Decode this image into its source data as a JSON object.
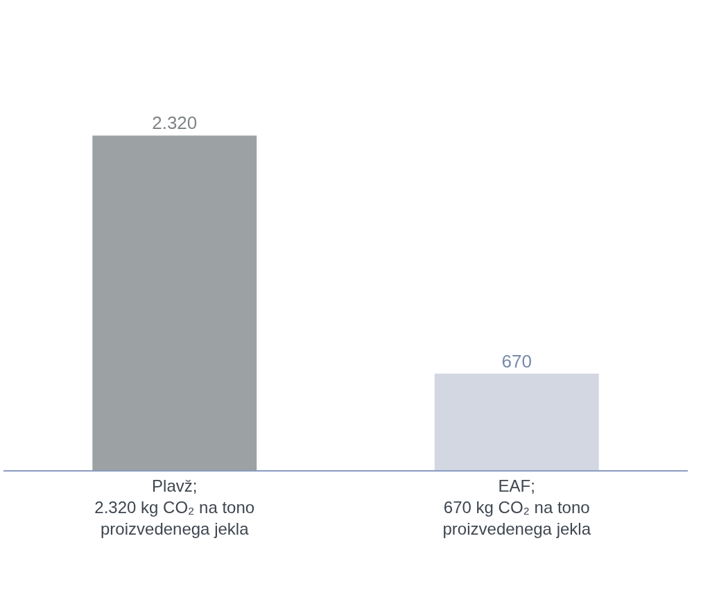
{
  "chart_data": {
    "type": "bar",
    "categories": [
      "Plavž;\n2.320 kg CO₂ na tono\nproizvedenega jekla",
      "EAF;\n670 kg CO₂ na tono\nproizvedenega jekla"
    ],
    "values": [
      2320,
      670
    ],
    "value_labels": [
      "2.320",
      "670"
    ],
    "colors": [
      "#9ca1a4",
      "#d2d7e2"
    ],
    "tick_labels": "x"
  }
}
